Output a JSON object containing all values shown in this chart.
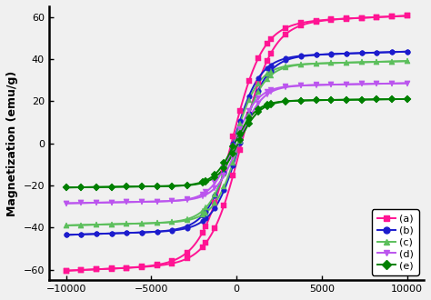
{
  "title": "",
  "xlabel": "",
  "ylabel": "Magnetization (emu/g)",
  "xlim": [
    -11000,
    11000
  ],
  "ylim": [
    -65,
    65
  ],
  "xticks": [
    -10000,
    -5000,
    0,
    5000,
    10000
  ],
  "yticks": [
    -60,
    -40,
    -20,
    0,
    20,
    40,
    60
  ],
  "series": [
    {
      "label": "(a)",
      "color": "#FF1493",
      "marker": "s",
      "Ms": 57,
      "Hc": 300,
      "sharpness": 0.00055,
      "slope": 0.00035
    },
    {
      "label": "(b)",
      "color": "#1C1CCD",
      "marker": "o",
      "Ms": 41,
      "Hc": 200,
      "sharpness": 0.00065,
      "slope": 0.00025
    },
    {
      "label": "(c)",
      "color": "#5CBF5C",
      "marker": "^",
      "Ms": 37,
      "Hc": 160,
      "sharpness": 0.0007,
      "slope": 0.0002
    },
    {
      "label": "(d)",
      "color": "#BB55EE",
      "marker": "v",
      "Ms": 27,
      "Hc": 130,
      "sharpness": 0.00075,
      "slope": 0.00015
    },
    {
      "label": "(e)",
      "color": "#008000",
      "marker": "D",
      "Ms": 20,
      "Hc": 100,
      "sharpness": 0.0008,
      "slope": 0.0001
    }
  ],
  "background_color": "#f0f0f0",
  "legend_loc": "lower right",
  "markersize": 4,
  "linewidth": 1.4,
  "n_line": 500,
  "n_marker": 28
}
